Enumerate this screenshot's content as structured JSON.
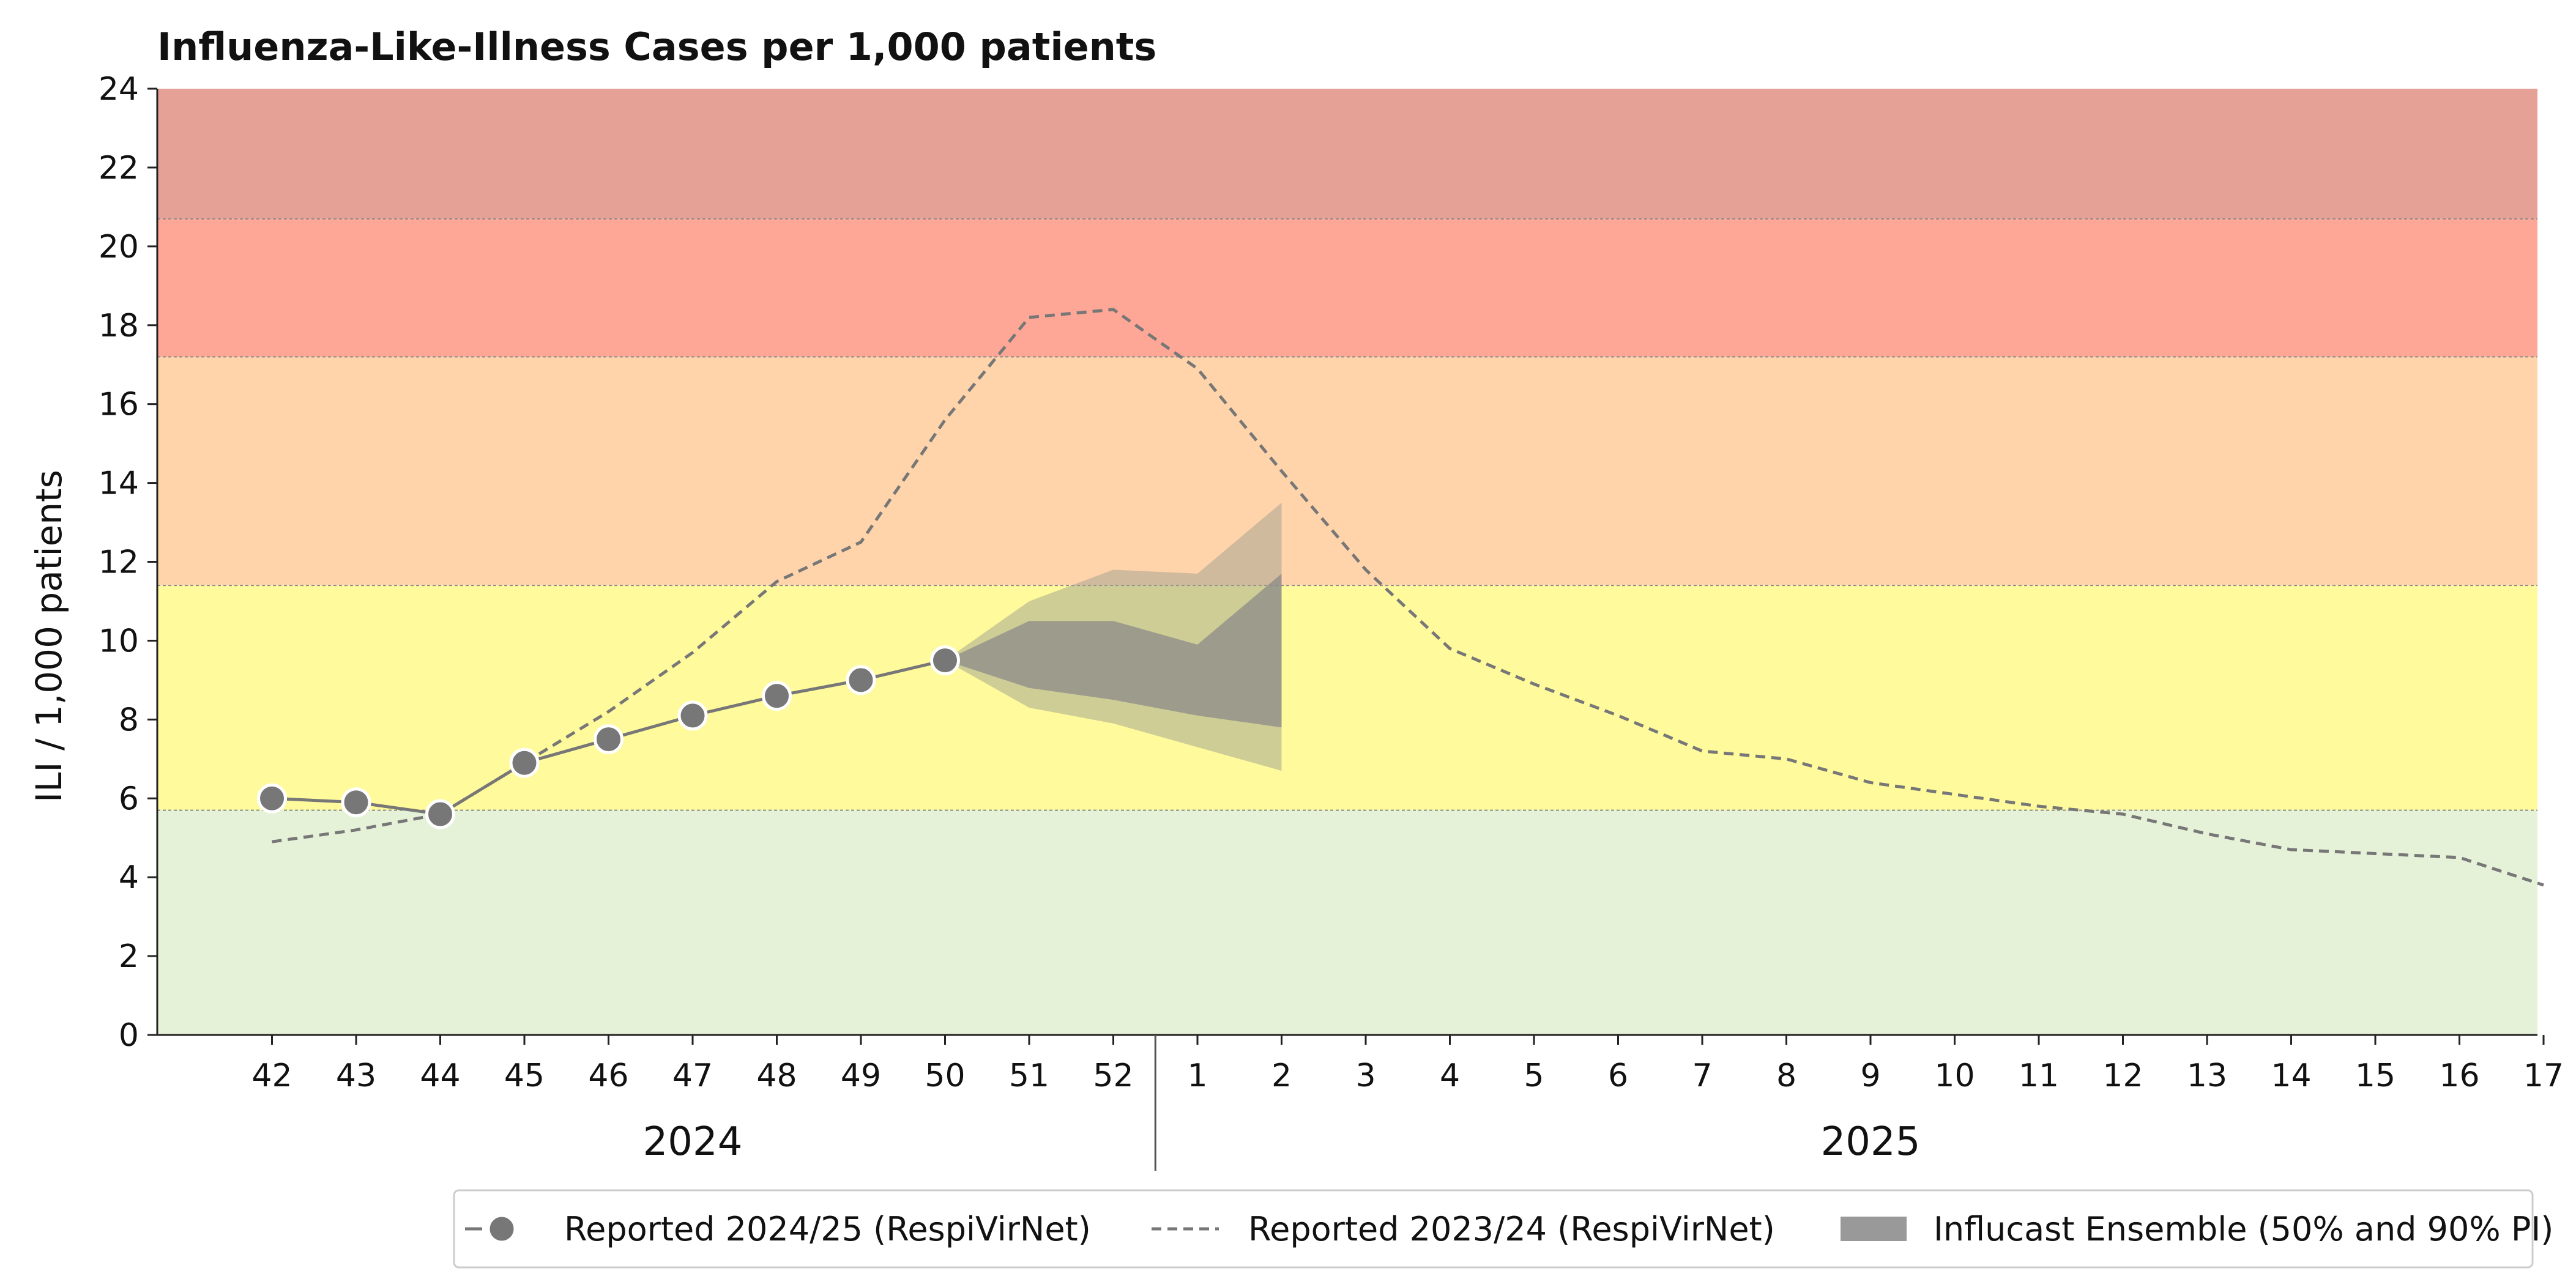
{
  "chart_data": {
    "type": "line",
    "title": "Influenza-Like-Illness Cases per 1,000 patients",
    "xlabel": "",
    "ylabel": "ILI / 1,000 patients",
    "ylim": [
      0,
      24
    ],
    "y_ticks": [
      0,
      2,
      4,
      6,
      8,
      10,
      12,
      14,
      16,
      18,
      20,
      22,
      24
    ],
    "x_ticks": [
      "42",
      "43",
      "44",
      "45",
      "46",
      "47",
      "48",
      "49",
      "50",
      "51",
      "52",
      "1",
      "2",
      "3",
      "4",
      "5",
      "6",
      "7",
      "8",
      "9",
      "10",
      "11",
      "12",
      "13",
      "14",
      "15",
      "16",
      "17"
    ],
    "year_labels": [
      {
        "label": "2024",
        "from_week": "42",
        "to_week": "52"
      },
      {
        "label": "2025",
        "from_week": "1",
        "to_week": "17"
      }
    ],
    "grid": false,
    "intensity_bands": [
      {
        "from": 0,
        "to": 5.7,
        "color": "#e6f2d8"
      },
      {
        "from": 5.7,
        "to": 11.4,
        "color": "#fffa9c"
      },
      {
        "from": 11.4,
        "to": 17.2,
        "color": "#ffd4aa"
      },
      {
        "from": 17.2,
        "to": 20.7,
        "color": "#ffa797"
      },
      {
        "from": 20.7,
        "to": 24,
        "color": "#e6a197"
      }
    ],
    "series": [
      {
        "name": "Reported 2024/25 (RespiVirNet)",
        "style": "line-with-markers",
        "color": "#777777",
        "x": [
          "42",
          "43",
          "44",
          "45",
          "46",
          "47",
          "48",
          "49",
          "50"
        ],
        "values": [
          6.0,
          5.9,
          5.6,
          6.9,
          7.5,
          8.1,
          8.6,
          9.0,
          9.5
        ]
      },
      {
        "name": "Reported 2023/24 (RespiVirNet)",
        "style": "dashed",
        "color": "#777777",
        "x": [
          "42",
          "43",
          "44",
          "45",
          "46",
          "47",
          "48",
          "49",
          "50",
          "51",
          "52",
          "1",
          "2",
          "3",
          "4",
          "5",
          "6",
          "7",
          "8",
          "9",
          "10",
          "11",
          "12",
          "13",
          "14",
          "15",
          "16",
          "17"
        ],
        "values": [
          4.9,
          5.2,
          5.6,
          6.9,
          8.2,
          9.7,
          11.5,
          12.5,
          15.6,
          18.2,
          18.4,
          16.9,
          14.3,
          11.8,
          9.8,
          8.9,
          8.1,
          7.2,
          7.0,
          6.4,
          6.1,
          5.8,
          5.6,
          5.1,
          4.7,
          4.6,
          4.5,
          3.8
        ]
      }
    ],
    "forecast": {
      "name": "Influcast Ensemble (50% and 90% PI)",
      "x": [
        "50",
        "51",
        "52",
        "1",
        "2"
      ],
      "pi50_lower": [
        9.5,
        8.8,
        8.5,
        8.1,
        7.8
      ],
      "pi50_upper": [
        9.5,
        10.5,
        10.5,
        9.9,
        11.7
      ],
      "pi90_lower": [
        9.5,
        8.3,
        7.9,
        7.3,
        6.7
      ],
      "pi90_upper": [
        9.5,
        11.0,
        11.8,
        11.7,
        13.5
      ],
      "color50": "#888888",
      "color90": "#a0a090"
    },
    "legend": {
      "position": "bottom-right",
      "entries": [
        {
          "label": "Reported 2024/25 (RespiVirNet)",
          "symbol": "line-marker"
        },
        {
          "label": "Reported 2023/24 (RespiVirNet)",
          "symbol": "dashed"
        },
        {
          "label": "Influcast Ensemble (50% and 90% PI)",
          "symbol": "patch"
        }
      ]
    }
  }
}
